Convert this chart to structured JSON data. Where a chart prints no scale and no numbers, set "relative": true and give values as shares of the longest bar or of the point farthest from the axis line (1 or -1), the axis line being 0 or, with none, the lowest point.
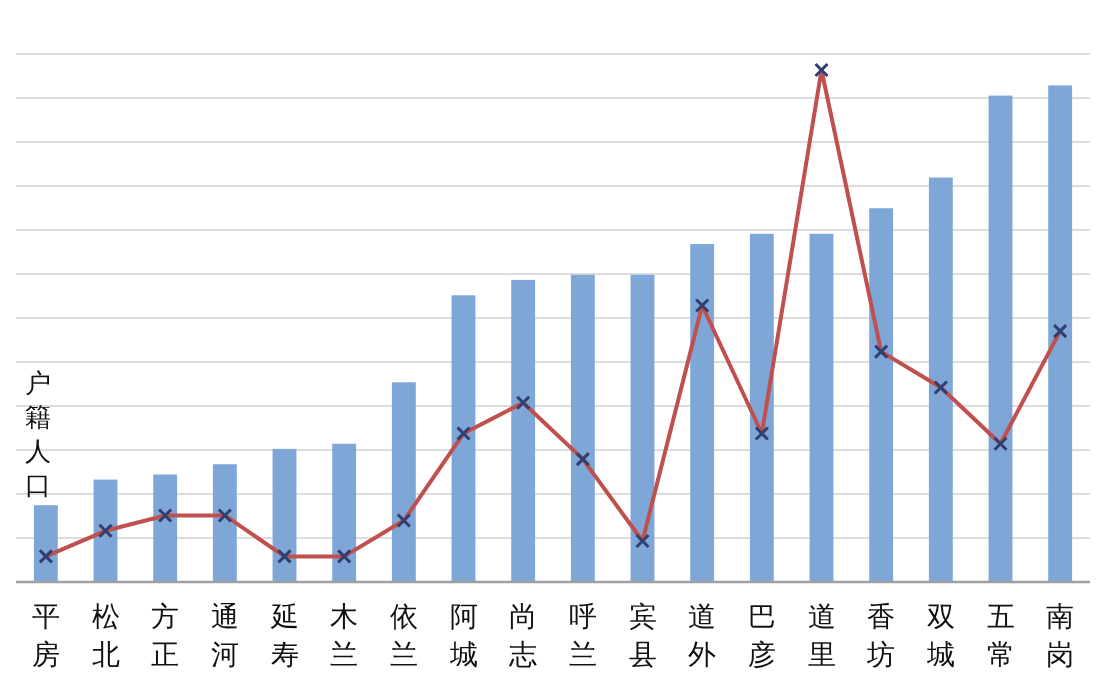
{
  "chart_data": {
    "type": "bar",
    "relative": true,
    "ylabel": "户籍人口",
    "grid": "y",
    "categories": [
      "平房",
      "松北",
      "方正",
      "通河",
      "延寿",
      "木兰",
      "依兰",
      "阿城",
      "尚志",
      "呼兰",
      "宾县",
      "道外",
      "巴彦",
      "道里",
      "香坊",
      "双城",
      "五常",
      "南岗"
    ],
    "series": [
      {
        "color": "#7ea6d6",
        "values": [
          0.15,
          0.2,
          0.21,
          0.23,
          0.26,
          0.27,
          0.39,
          0.56,
          0.59,
          0.6,
          0.6,
          0.66,
          0.68,
          0.68,
          0.73,
          0.79,
          0.95,
          0.97
        ]
      },
      {
        "type": "line",
        "color": "#c0504d",
        "marker": "cross",
        "values": [
          0.05,
          0.1,
          0.13,
          0.13,
          0.05,
          0.05,
          0.12,
          0.29,
          0.35,
          0.24,
          0.08,
          0.54,
          0.29,
          1,
          0.45,
          0.38,
          0.27,
          0.49
        ]
      }
    ]
  }
}
